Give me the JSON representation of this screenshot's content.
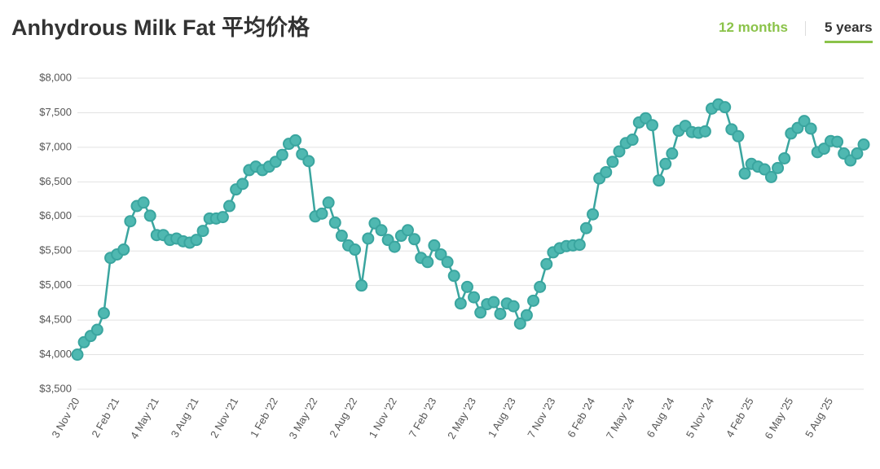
{
  "tabs": [
    "12 months",
    "5 years"
  ],
  "chart_data": {
    "type": "line",
    "title": "Anhydrous Milk Fat 平均价格",
    "categories": [
      "3 Nov '20",
      null,
      null,
      null,
      null,
      null,
      "2 Feb '21",
      null,
      null,
      null,
      null,
      null,
      "4 May '21",
      null,
      null,
      null,
      null,
      null,
      "3 Aug '21",
      null,
      null,
      null,
      null,
      null,
      "2 Nov '21",
      null,
      null,
      null,
      null,
      null,
      "1 Feb '22",
      null,
      null,
      null,
      null,
      null,
      "3 May '22",
      null,
      null,
      null,
      null,
      null,
      "2 Aug '22",
      null,
      null,
      null,
      null,
      null,
      "1 Nov '22",
      null,
      null,
      null,
      null,
      null,
      "7 Feb '23",
      null,
      null,
      null,
      null,
      null,
      "2 May '23",
      null,
      null,
      null,
      null,
      null,
      "1 Aug '23",
      null,
      null,
      null,
      null,
      null,
      "7 Nov '23",
      null,
      null,
      null,
      null,
      null,
      "6 Feb '24",
      null,
      null,
      null,
      null,
      null,
      "7 May '24",
      null,
      null,
      null,
      null,
      null,
      "6 Aug '24",
      null,
      null,
      null,
      null,
      null,
      "5 Nov '24",
      null,
      null,
      null,
      null,
      null,
      "4 Feb '25",
      null,
      null,
      null,
      null,
      null,
      "6 May '25",
      null,
      null,
      null,
      null,
      null,
      "5 Aug '25",
      null,
      null,
      null,
      null,
      null
    ],
    "values": [
      4000,
      4180,
      4270,
      4360,
      4600,
      5400,
      5450,
      5520,
      5930,
      6150,
      6200,
      6010,
      5730,
      5730,
      5660,
      5680,
      5640,
      5620,
      5660,
      5790,
      5970,
      5970,
      5990,
      6150,
      6390,
      6470,
      6670,
      6720,
      6670,
      6720,
      6790,
      6890,
      7050,
      7100,
      6900,
      6800,
      6000,
      6040,
      6200,
      5910,
      5720,
      5580,
      5520,
      5000,
      5680,
      5900,
      5800,
      5660,
      5560,
      5720,
      5800,
      5670,
      5400,
      5340,
      5580,
      5450,
      5340,
      5140,
      4740,
      4980,
      4830,
      4610,
      4730,
      4760,
      4590,
      4740,
      4700,
      4450,
      4570,
      4780,
      4980,
      5310,
      5480,
      5540,
      5570,
      5580,
      5590,
      5830,
      6030,
      6550,
      6640,
      6790,
      6940,
      7060,
      7110,
      7360,
      7420,
      7320,
      6520,
      6760,
      6910,
      7240,
      7310,
      7220,
      7210,
      7230,
      7560,
      7620,
      7580,
      7260,
      7160,
      6620,
      6760,
      6720,
      6680,
      6570,
      6700,
      6840,
      7200,
      7280,
      7380,
      7270,
      6930,
      6980,
      7090,
      7080,
      6910,
      6810,
      6910,
      7040
    ],
    "color": "#3aa59f",
    "ylim": [
      3500,
      8000
    ],
    "yticks": [
      {
        "value": 3500,
        "label": "$3,500"
      },
      {
        "value": 4000,
        "label": "$4,000"
      },
      {
        "value": 4500,
        "label": "$4,500"
      },
      {
        "value": 5000,
        "label": "$5,000"
      },
      {
        "value": 5500,
        "label": "$5,500"
      },
      {
        "value": 6000,
        "label": "$6,000"
      },
      {
        "value": 6500,
        "label": "$6,500"
      },
      {
        "value": 7000,
        "label": "$7,000"
      },
      {
        "value": 7500,
        "label": "$7,500"
      },
      {
        "value": 8000,
        "label": "$8,000"
      }
    ],
    "grid": true
  }
}
